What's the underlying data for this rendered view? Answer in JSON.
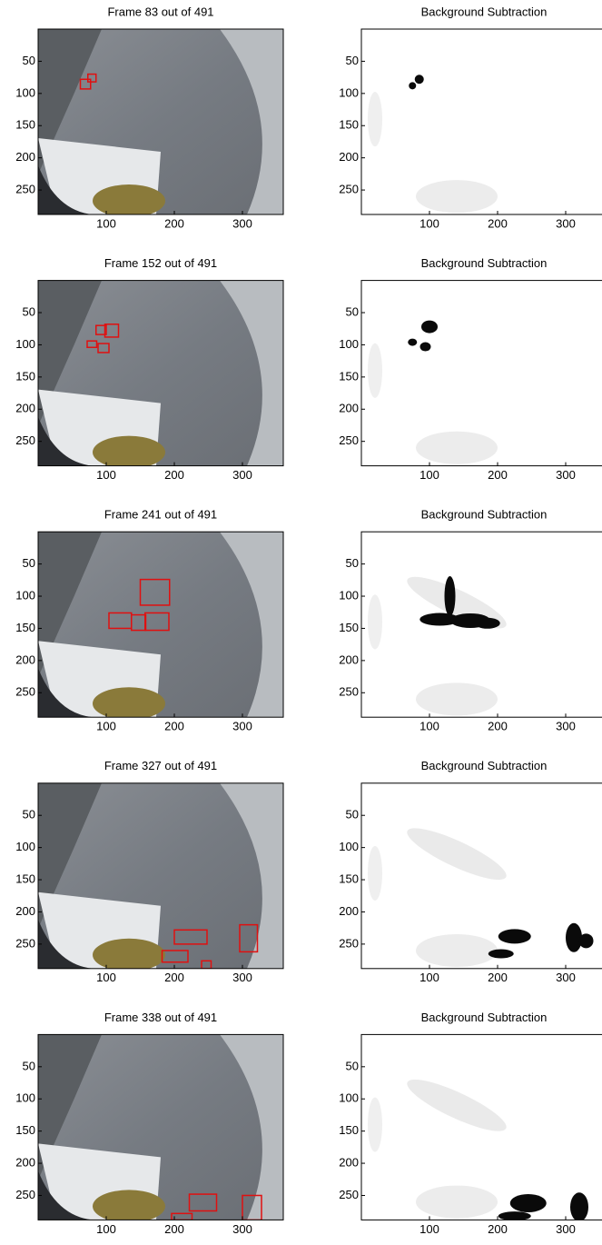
{
  "axes": {
    "xlim": [
      0,
      360
    ],
    "ylim": [
      0,
      288
    ],
    "xticks": [
      100,
      200,
      300
    ],
    "yticks": [
      50,
      100,
      150,
      200,
      250
    ]
  },
  "panels": [
    {
      "title": "Frame 83 out of 491",
      "bg_title": "Background Subtraction",
      "boxes": [
        [
          62,
          78,
          15,
          15
        ],
        [
          73,
          70,
          12,
          12
        ]
      ]
    },
    {
      "title": "Frame 152 out of 491",
      "bg_title": "Background Subtraction",
      "boxes": [
        [
          85,
          70,
          15,
          14
        ],
        [
          98,
          68,
          20,
          20
        ],
        [
          72,
          94,
          14,
          10
        ],
        [
          88,
          98,
          16,
          14
        ]
      ]
    },
    {
      "title": "Frame 241 out of 491",
      "bg_title": "Background Subtraction",
      "boxes": [
        [
          150,
          74,
          43,
          40
        ],
        [
          104,
          126,
          33,
          24
        ],
        [
          137,
          129,
          21,
          24
        ],
        [
          157,
          126,
          35,
          27
        ]
      ]
    },
    {
      "title": "Frame 327 out of 491",
      "bg_title": "Background Subtraction",
      "boxes": [
        [
          200,
          228,
          48,
          22
        ],
        [
          182,
          260,
          38,
          18
        ],
        [
          240,
          276,
          14,
          12
        ],
        [
          296,
          220,
          26,
          42
        ]
      ]
    },
    {
      "title": "Frame 338 out of 491",
      "bg_title": "Background Subtraction",
      "boxes": [
        [
          222,
          248,
          40,
          26
        ],
        [
          196,
          278,
          30,
          10
        ],
        [
          300,
          250,
          28,
          38
        ]
      ]
    }
  ]
}
